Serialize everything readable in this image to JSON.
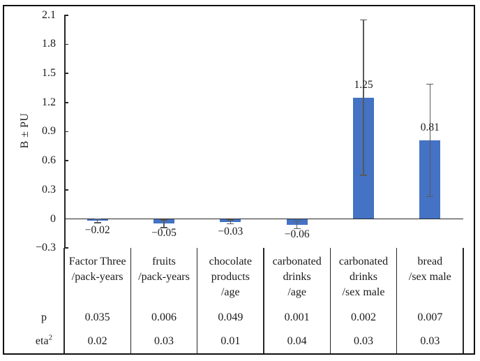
{
  "chart_data": {
    "type": "bar",
    "title": "",
    "ylabel": "B ± PU",
    "xlabel": "",
    "ylim": [
      -0.3,
      2.1
    ],
    "ytick_step": 0.3,
    "ytick_labels": [
      "2.1",
      "1.8",
      "1.5",
      "1.2",
      "0.9",
      "0.6",
      "0.3",
      "0",
      "−0.3"
    ],
    "grid": false,
    "legend": false,
    "bar_color": "#4472C4",
    "error_bar_color": "#595959",
    "axis_color": "#262626",
    "categories": [
      {
        "lines": [
          "Factor Three",
          "/pack-years"
        ]
      },
      {
        "lines": [
          "fruits",
          "/pack-years"
        ]
      },
      {
        "lines": [
          "chocolate",
          "products",
          "/age"
        ]
      },
      {
        "lines": [
          "carbonated",
          "drinks",
          "/age"
        ]
      },
      {
        "lines": [
          "carbonated",
          "drinks",
          "/sex male"
        ]
      },
      {
        "lines": [
          "bread",
          "/sex male"
        ]
      }
    ],
    "values": [
      -0.02,
      -0.05,
      -0.03,
      -0.06,
      1.25,
      0.81
    ],
    "value_labels": [
      "−0.02",
      "−0.05",
      "−0.03",
      "−0.06",
      "1.25",
      "0.81"
    ],
    "errors_plus_minus": [
      0.02,
      0.04,
      0.02,
      0.04,
      0.8,
      0.58
    ],
    "stat_table": {
      "rows": [
        {
          "label": "p",
          "superscript": "",
          "values": [
            "0.035",
            "0.006",
            "0.049",
            "0.001",
            "0.002",
            "0.007"
          ]
        },
        {
          "label": "eta",
          "superscript": "2",
          "values": [
            "0.02",
            "0.03",
            "0.01",
            "0.04",
            "0.03",
            "0.03"
          ]
        }
      ]
    }
  }
}
